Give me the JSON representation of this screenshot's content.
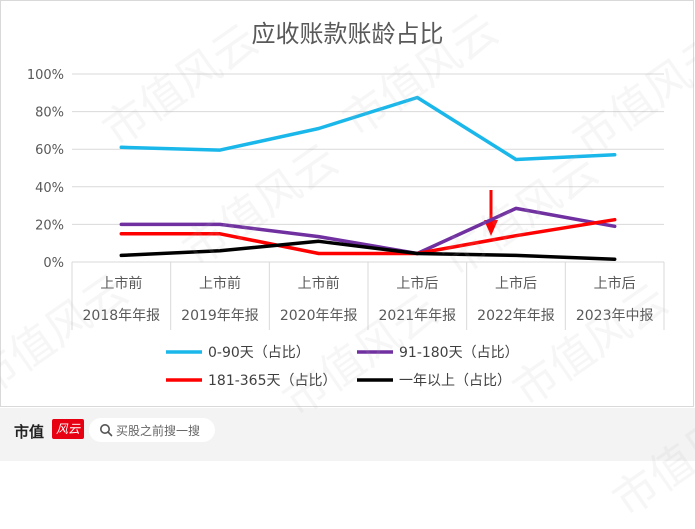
{
  "chart_data": {
    "type": "line",
    "title": "应收账款账龄占比",
    "categories": [
      [
        "上市前",
        "2018年年报"
      ],
      [
        "上市前",
        "2019年年报"
      ],
      [
        "上市前",
        "2020年年报"
      ],
      [
        "上市后",
        "2021年年报"
      ],
      [
        "上市后",
        "2022年年报"
      ],
      [
        "上市后",
        "2023年中报"
      ]
    ],
    "y_ticks": [
      "0%",
      "20%",
      "40%",
      "60%",
      "80%",
      "100%"
    ],
    "ylim": [
      0,
      100
    ],
    "grid": true,
    "legend_position": "bottom",
    "series": [
      {
        "name": "0-90天（占比）",
        "color": "#1ab7ea",
        "values": [
          61,
          59.5,
          71,
          87.5,
          54.5,
          57
        ]
      },
      {
        "name": "91-180天（占比）",
        "color": "#7030a0",
        "values": [
          20,
          20,
          13.5,
          4.5,
          28.5,
          19
        ]
      },
      {
        "name": "181-365天（占比）",
        "color": "#ff0000",
        "values": [
          15,
          15,
          4.5,
          4.5,
          14,
          22.5
        ]
      },
      {
        "name": "一年以上（占比）",
        "color": "#000000",
        "values": [
          3.5,
          6,
          11,
          4.5,
          3.5,
          1.5
        ]
      }
    ]
  },
  "footer": {
    "brand": "市值",
    "brand_logo": "风云",
    "search_placeholder": "买股之前搜一搜",
    "search_icon": "search-icon"
  },
  "watermark": "市值风云"
}
